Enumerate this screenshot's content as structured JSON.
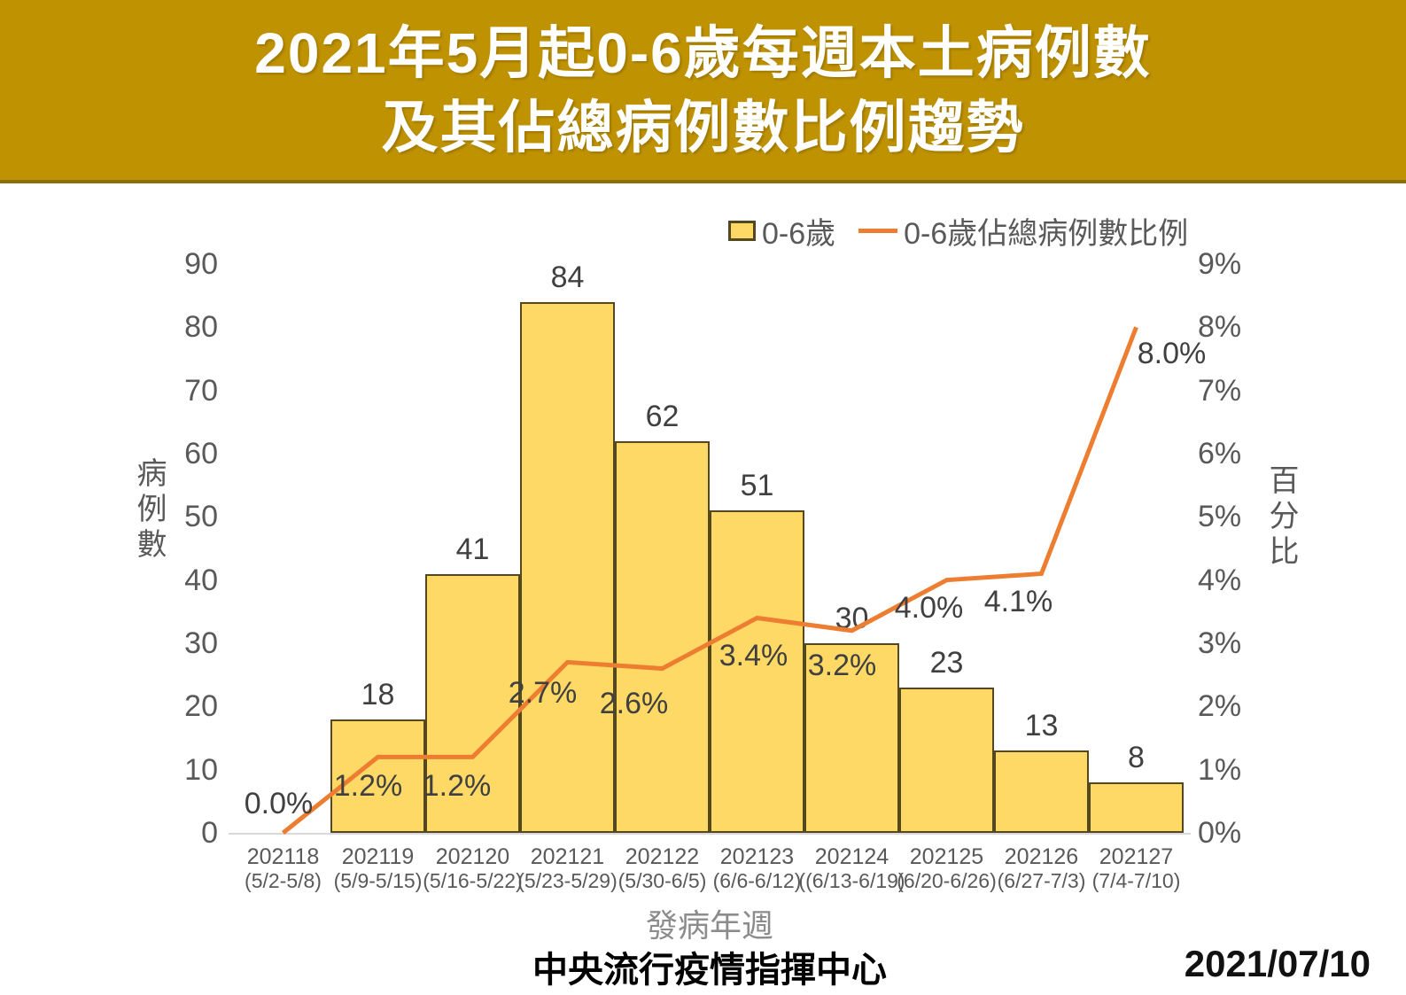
{
  "header": {
    "title_line1": "2021年5月起0-6歲每週本土病例數",
    "title_line2": "及其佔總病例數比例趨勢"
  },
  "legend": {
    "bar_label": "0-6歲",
    "line_label": "0-6歲佔總病例數比例"
  },
  "chart_data": {
    "type": "combo-bar-line",
    "categories": [
      {
        "week": "202118",
        "range": "(5/2-5/8)"
      },
      {
        "week": "202119",
        "range": "(5/9-5/15)"
      },
      {
        "week": "202120",
        "range": "(5/16-5/22)"
      },
      {
        "week": "202121",
        "range": "(5/23-5/29)"
      },
      {
        "week": "202122",
        "range": "(5/30-6/5)"
      },
      {
        "week": "202123",
        "range": "(6/6-6/12)"
      },
      {
        "week": "202124",
        "range": "((6/13-6/19)"
      },
      {
        "week": "202125",
        "range": "(6/20-6/26)"
      },
      {
        "week": "202126",
        "range": "(6/27-7/3)"
      },
      {
        "week": "202127",
        "range": "(7/4-7/10)"
      }
    ],
    "series": [
      {
        "name": "0-6歲",
        "type": "bar",
        "values": [
          0,
          18,
          41,
          84,
          62,
          51,
          30,
          23,
          13,
          8
        ]
      },
      {
        "name": "0-6歲佔總病例數比例",
        "type": "line",
        "values": [
          0.0,
          1.2,
          1.2,
          2.7,
          2.6,
          3.4,
          3.2,
          4.0,
          4.1,
          8.0
        ],
        "labels": [
          "0.0%",
          "1.2%",
          "1.2%",
          "2.7%",
          "2.6%",
          "3.4%",
          "3.2%",
          "4.0%",
          "4.1%",
          "8.0%"
        ]
      }
    ],
    "left_axis": {
      "title": "病例數",
      "ticks": [
        "0",
        "10",
        "20",
        "30",
        "40",
        "50",
        "60",
        "70",
        "80",
        "90"
      ],
      "range": [
        0,
        90
      ]
    },
    "right_axis": {
      "title": "百分比",
      "ticks": [
        "0%",
        "1%",
        "2%",
        "3%",
        "4%",
        "5%",
        "6%",
        "7%",
        "8%",
        "9%"
      ],
      "range": [
        0,
        9
      ]
    },
    "x_axis": {
      "title": "發病年週"
    },
    "grid": false,
    "legend_position": "top-right",
    "colors": {
      "bar_fill": "#FFD966",
      "bar_border": "#54491e",
      "line": "#ED7D31",
      "header_bg": "#BF9202"
    }
  },
  "footer": {
    "source": "中央流行疫情指揮中心",
    "date": "2021/07/10"
  }
}
